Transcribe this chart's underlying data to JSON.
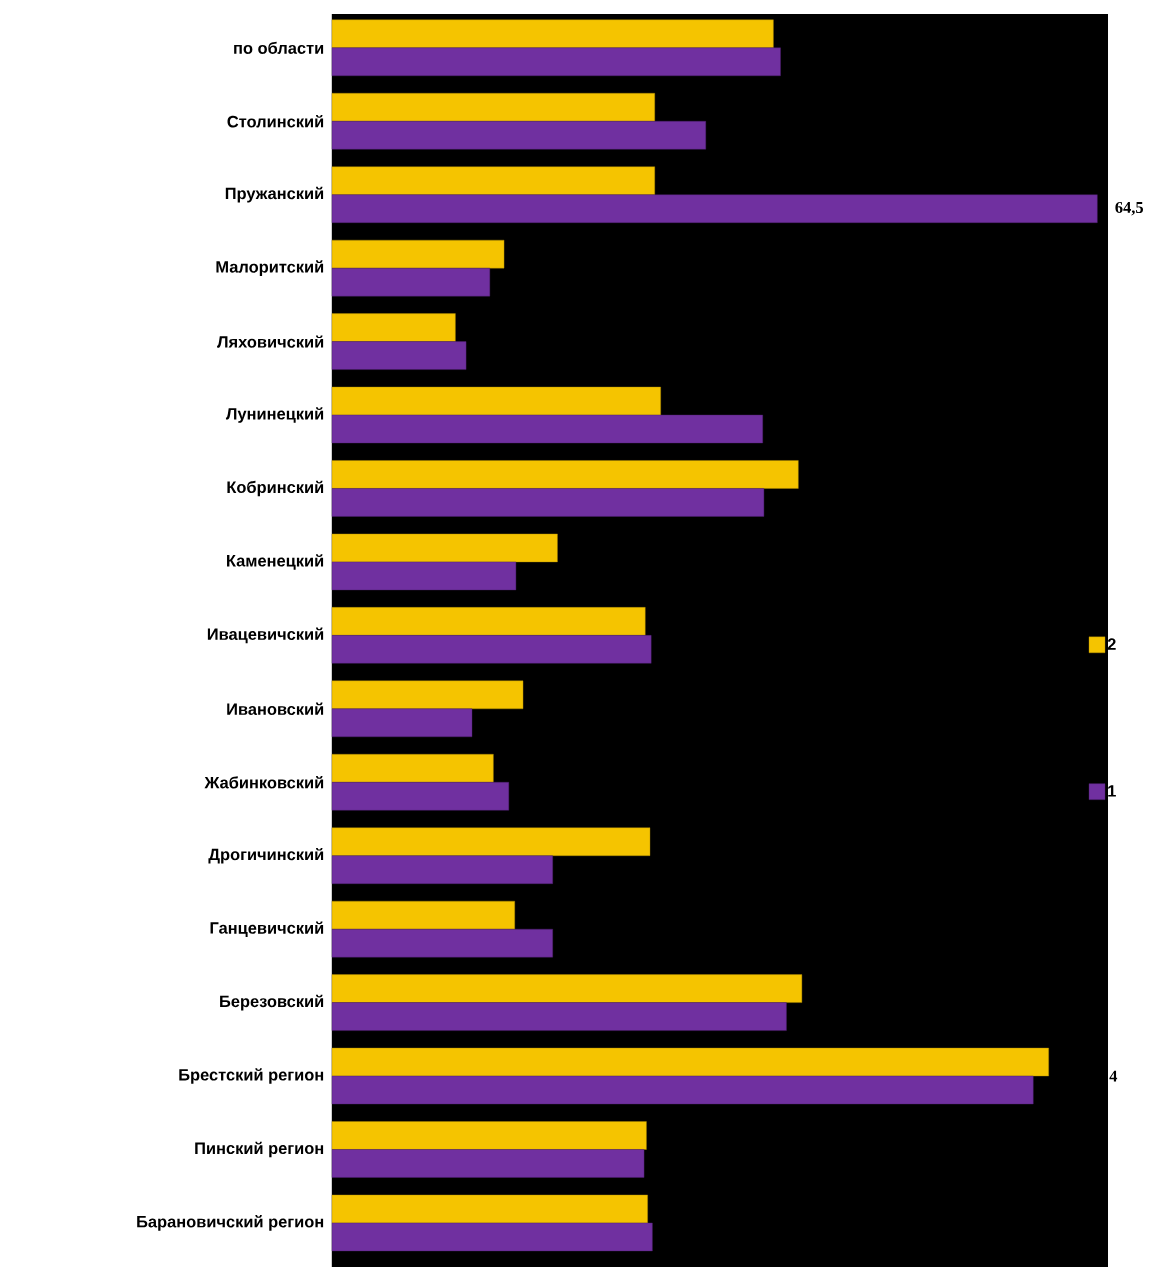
{
  "chart_data": {
    "type": "bar",
    "orientation": "horizontal",
    "legend": "right",
    "xlim": [
      0,
      65.4
    ],
    "categories": [
      "по области",
      "Столинский",
      "Пружанский",
      "Малоритский",
      "Ляховичский",
      "Лунинецкий",
      "Кобринский",
      "Каменецкий",
      "Ивацевичский",
      "Ивановский",
      "Жабинковский",
      "Дрогичинский",
      "Ганцевичский",
      "Березовский",
      "Брестский регион",
      "Пинский регион",
      "Барановичский регион"
    ],
    "series": [
      {
        "name": "2",
        "color": "#f5c400",
        "values": [
          37.2,
          27.2,
          27.2,
          14.5,
          10.4,
          27.7,
          39.3,
          19.0,
          26.4,
          16.1,
          13.6,
          26.8,
          15.4,
          39.6,
          60.4,
          26.5,
          26.6
        ]
      },
      {
        "name": "1",
        "color": "#7030a0",
        "values": [
          37.8,
          31.5,
          64.5,
          13.3,
          11.3,
          36.3,
          36.4,
          15.5,
          26.9,
          11.8,
          14.9,
          18.6,
          18.6,
          38.3,
          59.1,
          26.3,
          27.0
        ],
        "value_labels": [
          null,
          null,
          "64,5",
          null,
          null,
          null,
          null,
          null,
          null,
          null,
          null,
          null,
          null,
          null,
          null,
          null,
          null
        ]
      }
    ],
    "annotations": [
      "4"
    ]
  }
}
